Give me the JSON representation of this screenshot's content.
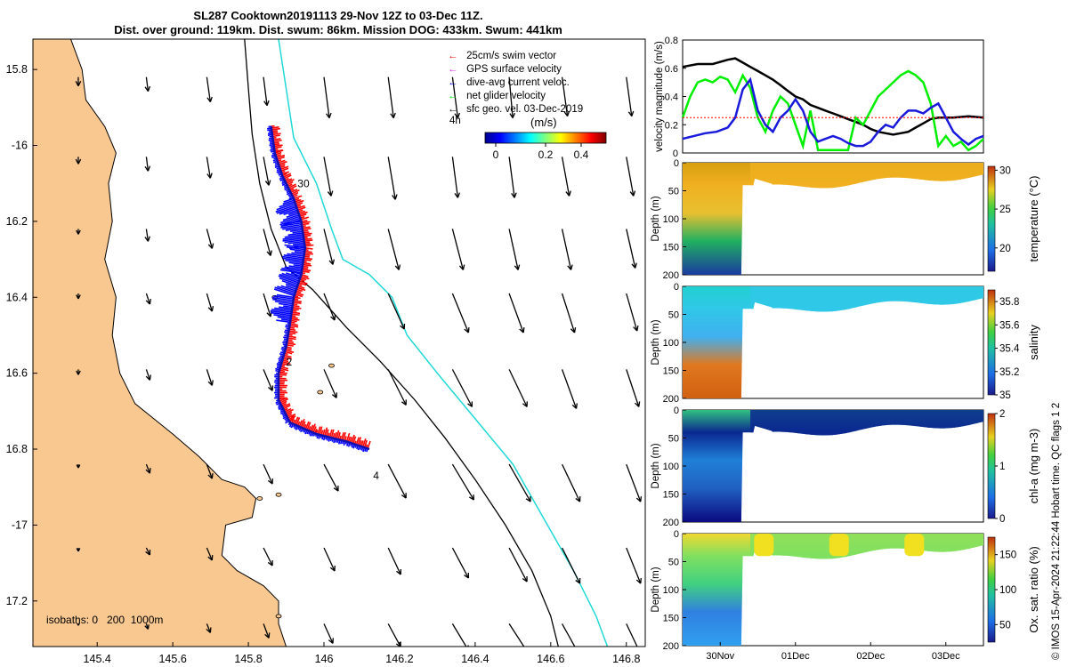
{
  "title": {
    "line1": "SL287 Cooktown20191113 29-Nov 12Z to 03-Dec 11Z.",
    "line2": "Dist. over ground: 119km. Dist. swum: 86km. Mission DOG: 433km. Swum: 441km"
  },
  "copyright": "© IMOS 15-Apr-2024 21:22:44 Hobart time. QC flags 1  2",
  "colors": {
    "land": "#f9c890",
    "track_red": "#ff0000",
    "track_blue": "#0000ff",
    "isobath_200": "#000000",
    "isobath_1000": "#20d8d8",
    "net_velocity": "#00ee00",
    "current": "#0000ff",
    "geo_velocity": "#000000",
    "swim": "#ff0000"
  },
  "map": {
    "legend": [
      "25cm/s swim vector",
      "GPS surface velocity",
      "dive-avg current veloc.",
      "net glider velocity",
      "sfc geo. vel. 03-Dec-2019"
    ],
    "legend_note": "4h",
    "colorbar_label": "(m/s)",
    "colorbar_ticks": [
      "0",
      "0.2",
      "0.4"
    ],
    "isobath_note": "isobaths: 0   200  1000m",
    "track_labels": [
      "30",
      "2",
      "4"
    ]
  },
  "chart_data": [
    {
      "type": "map",
      "x_ticks": [
        145.4,
        145.6,
        145.8,
        146,
        146.2,
        146.4,
        146.6,
        146.8
      ],
      "y_ticks": [
        -15.8,
        -16,
        -16.2,
        -16.4,
        -16.6,
        -16.8,
        -17,
        -17.2
      ],
      "y_tick_labels": [
        "15.8",
        "-16",
        "16.2",
        "16.4",
        "16.6",
        "16.8",
        "-17",
        "17.2"
      ],
      "xlim": [
        145.23,
        146.85
      ],
      "ylim": [
        -17.32,
        -15.72
      ],
      "track_labels": [
        {
          "text": "30",
          "lon": 145.93,
          "lat": -16.11
        },
        {
          "text": "2",
          "lon": 145.9,
          "lat": -16.58
        },
        {
          "text": "4",
          "lon": 146.13,
          "lat": -16.88
        }
      ],
      "glider_track": [
        [
          145.86,
          -15.95
        ],
        [
          145.87,
          -16.02
        ],
        [
          145.89,
          -16.08
        ],
        [
          145.92,
          -16.14
        ],
        [
          145.94,
          -16.2
        ],
        [
          145.95,
          -16.27
        ],
        [
          145.94,
          -16.34
        ],
        [
          145.92,
          -16.4
        ],
        [
          145.91,
          -16.47
        ],
        [
          145.9,
          -16.53
        ],
        [
          145.88,
          -16.6
        ],
        [
          145.88,
          -16.67
        ],
        [
          145.91,
          -16.73
        ],
        [
          145.98,
          -16.76
        ],
        [
          146.06,
          -16.78
        ],
        [
          146.12,
          -16.8
        ]
      ],
      "isobath_200": [
        [
          145.79,
          -15.72
        ],
        [
          145.8,
          -15.85
        ],
        [
          145.81,
          -15.97
        ],
        [
          145.83,
          -16.1
        ],
        [
          145.86,
          -16.22
        ],
        [
          145.9,
          -16.32
        ],
        [
          145.97,
          -16.38
        ],
        [
          146.06,
          -16.48
        ],
        [
          146.15,
          -16.57
        ],
        [
          146.24,
          -16.67
        ],
        [
          146.32,
          -16.77
        ],
        [
          146.4,
          -16.88
        ],
        [
          146.48,
          -17.0
        ],
        [
          146.55,
          -17.12
        ],
        [
          146.6,
          -17.24
        ],
        [
          146.62,
          -17.32
        ]
      ],
      "isobath_1000": [
        [
          145.88,
          -15.72
        ],
        [
          145.9,
          -15.85
        ],
        [
          145.92,
          -15.98
        ],
        [
          145.98,
          -16.1
        ],
        [
          146.02,
          -16.22
        ],
        [
          146.05,
          -16.3
        ],
        [
          146.12,
          -16.34
        ],
        [
          146.18,
          -16.4
        ],
        [
          146.22,
          -16.5
        ],
        [
          146.3,
          -16.6
        ],
        [
          146.4,
          -16.72
        ],
        [
          146.5,
          -16.84
        ],
        [
          146.58,
          -16.98
        ],
        [
          146.66,
          -17.12
        ],
        [
          146.72,
          -17.24
        ],
        [
          146.75,
          -17.32
        ]
      ],
      "geo_vectors": {
        "lons": [
          145.35,
          145.53,
          145.69,
          145.84,
          146.0,
          146.17,
          146.34,
          146.49,
          146.63,
          146.8
        ],
        "lats": [
          -15.82,
          -16.03,
          -16.22,
          -16.39,
          -16.59,
          -16.84,
          -17.06,
          -17.26
        ],
        "u": [
          [
            0.0,
            0.01,
            0.02,
            0.02,
            0.03,
            0.03,
            0.03,
            0.02,
            0.03,
            0.03
          ],
          [
            0.0,
            0.01,
            0.02,
            0.03,
            0.04,
            0.04,
            0.03,
            0.03,
            0.04,
            0.04
          ],
          [
            0.0,
            0.01,
            0.03,
            0.04,
            0.05,
            0.06,
            0.06,
            0.05,
            0.05,
            0.05
          ],
          [
            0.0,
            0.02,
            0.03,
            0.04,
            0.06,
            0.09,
            0.09,
            0.08,
            0.07,
            0.06
          ],
          [
            0.0,
            0.02,
            0.03,
            0.05,
            0.07,
            0.1,
            0.11,
            0.1,
            0.08,
            0.07
          ],
          [
            0.0,
            0.02,
            0.03,
            0.05,
            0.08,
            0.1,
            0.12,
            0.12,
            0.1,
            0.08
          ],
          [
            0.0,
            0.02,
            0.03,
            0.05,
            0.06,
            0.07,
            0.09,
            0.1,
            0.1,
            0.08
          ],
          [
            0.0,
            0.01,
            0.02,
            0.03,
            0.05,
            0.07,
            0.09,
            0.11,
            0.1,
            0.09
          ]
        ],
        "v": [
          [
            -0.05,
            -0.08,
            -0.14,
            -0.16,
            -0.23,
            -0.23,
            -0.23,
            -0.23,
            -0.22,
            -0.22
          ],
          [
            -0.04,
            -0.08,
            -0.12,
            -0.16,
            -0.22,
            -0.24,
            -0.23,
            -0.23,
            -0.22,
            -0.22
          ],
          [
            -0.03,
            -0.07,
            -0.11,
            -0.15,
            -0.2,
            -0.23,
            -0.23,
            -0.23,
            -0.23,
            -0.22
          ],
          [
            -0.03,
            -0.06,
            -0.1,
            -0.13,
            -0.15,
            -0.2,
            -0.22,
            -0.22,
            -0.22,
            -0.21
          ],
          [
            -0.03,
            -0.06,
            -0.09,
            -0.12,
            -0.16,
            -0.2,
            -0.21,
            -0.21,
            -0.22,
            -0.21
          ],
          [
            -0.02,
            -0.05,
            -0.08,
            -0.11,
            -0.15,
            -0.19,
            -0.2,
            -0.21,
            -0.21,
            -0.21
          ],
          [
            -0.02,
            -0.04,
            -0.07,
            -0.1,
            -0.13,
            -0.15,
            -0.17,
            -0.19,
            -0.2,
            -0.2
          ],
          [
            -0.01,
            -0.03,
            -0.05,
            -0.08,
            -0.11,
            -0.13,
            -0.15,
            -0.17,
            -0.18,
            -0.19
          ]
        ]
      }
    },
    {
      "type": "line",
      "ylabel": "velocity magnitude (m/s)",
      "ylim": [
        0,
        0.8
      ],
      "y_ticks": [
        0,
        0.2,
        0.4,
        0.6,
        0.8
      ],
      "xlim": [
        0,
        4
      ],
      "series": [
        {
          "color": "#000000",
          "x": [
            0,
            0.2,
            0.4,
            0.6,
            0.7,
            0.8,
            0.9,
            1.0,
            1.1,
            1.2,
            1.3,
            1.4,
            1.5,
            1.6,
            1.7,
            1.8,
            1.9,
            2.0,
            2.1,
            2.2,
            2.3,
            2.4,
            2.5,
            2.6,
            2.7,
            2.8,
            2.9,
            3.0,
            3.1,
            3.2,
            3.3,
            3.4,
            3.6,
            3.8,
            4.0
          ],
          "values": [
            0.61,
            0.63,
            0.63,
            0.66,
            0.67,
            0.64,
            0.61,
            0.58,
            0.55,
            0.52,
            0.48,
            0.44,
            0.4,
            0.38,
            0.34,
            0.32,
            0.3,
            0.28,
            0.26,
            0.24,
            0.22,
            0.2,
            0.17,
            0.15,
            0.14,
            0.13,
            0.14,
            0.15,
            0.18,
            0.21,
            0.24,
            0.25,
            0.25,
            0.26,
            0.25
          ]
        },
        {
          "color": "#00ee00",
          "x": [
            0,
            0.1,
            0.2,
            0.3,
            0.4,
            0.5,
            0.6,
            0.7,
            0.8,
            0.9,
            1.0,
            1.1,
            1.2,
            1.3,
            1.4,
            1.5,
            1.6,
            1.7,
            1.8,
            1.9,
            2.0,
            2.1,
            2.2,
            2.3,
            2.4,
            2.5,
            2.6,
            2.7,
            2.8,
            2.9,
            3.0,
            3.1,
            3.2,
            3.3,
            3.4,
            3.5,
            3.6,
            3.7,
            3.8,
            3.9,
            4.0
          ],
          "values": [
            0.25,
            0.4,
            0.5,
            0.52,
            0.5,
            0.54,
            0.52,
            0.43,
            0.55,
            0.46,
            0.25,
            0.15,
            0.3,
            0.4,
            0.35,
            0.2,
            0.05,
            0.3,
            0.02,
            0.02,
            0.02,
            0.02,
            0.02,
            0.25,
            0.2,
            0.3,
            0.4,
            0.45,
            0.5,
            0.55,
            0.58,
            0.55,
            0.5,
            0.35,
            0.05,
            0.12,
            0.05,
            0.08,
            0.02,
            0.05,
            0.1
          ]
        },
        {
          "color": "#1a1adc",
          "x": [
            0,
            0.15,
            0.3,
            0.45,
            0.6,
            0.7,
            0.8,
            0.9,
            1.0,
            1.1,
            1.2,
            1.3,
            1.4,
            1.5,
            1.6,
            1.7,
            1.8,
            1.9,
            2.0,
            2.1,
            2.2,
            2.3,
            2.4,
            2.5,
            2.6,
            2.7,
            2.8,
            2.9,
            3.0,
            3.1,
            3.2,
            3.3,
            3.4,
            3.5,
            3.6,
            3.7,
            3.8,
            3.9,
            4.0
          ],
          "values": [
            0.1,
            0.12,
            0.14,
            0.15,
            0.18,
            0.25,
            0.45,
            0.52,
            0.3,
            0.2,
            0.15,
            0.25,
            0.3,
            0.38,
            0.3,
            0.15,
            0.08,
            0.1,
            0.12,
            0.1,
            0.07,
            0.05,
            0.05,
            0.08,
            0.15,
            0.2,
            0.18,
            0.25,
            0.3,
            0.3,
            0.28,
            0.32,
            0.35,
            0.25,
            0.15,
            0.1,
            0.06,
            0.1,
            0.12
          ]
        },
        {
          "color": "#ff0000",
          "x": [
            0,
            4
          ],
          "values": [
            0.25,
            0.25
          ]
        }
      ]
    },
    {
      "type": "heatmap",
      "ylabel": "Depth (m)",
      "clabel": "temperature (°C)",
      "clim": [
        17,
        30.5
      ],
      "cticks": [
        20,
        25,
        30
      ],
      "y_ticks": [
        0,
        50,
        100,
        150,
        200
      ],
      "ylim": [
        0,
        200
      ],
      "field": "temperature"
    },
    {
      "type": "heatmap",
      "ylabel": "Depth (m)",
      "clabel": "salinity",
      "clim": [
        35,
        35.9
      ],
      "cticks": [
        35,
        35.2,
        35.4,
        35.6,
        35.8
      ],
      "y_ticks": [
        0,
        50,
        100,
        150,
        200
      ],
      "ylim": [
        0,
        200
      ],
      "field": "salinity"
    },
    {
      "type": "heatmap",
      "ylabel": "Depth (m)",
      "clabel": "chl-a (mg m-3)",
      "clim": [
        0,
        2
      ],
      "cticks": [
        0,
        1,
        2
      ],
      "y_ticks": [
        0,
        50,
        100,
        150,
        200
      ],
      "ylim": [
        0,
        200
      ],
      "field": "chla"
    },
    {
      "type": "heatmap",
      "ylabel": "Depth (m)",
      "clabel": "Ox. sat. ratio (%)",
      "clim": [
        25,
        175
      ],
      "cticks": [
        50,
        100,
        150
      ],
      "y_ticks": [
        0,
        50,
        100,
        150,
        200
      ],
      "ylim": [
        0,
        200
      ],
      "field": "oxygen",
      "x_tick_labels": [
        "30Nov",
        "01Dec",
        "02Dec",
        "03Dec"
      ],
      "x_tick_positions": [
        0.5,
        1.5,
        2.5,
        3.5
      ]
    }
  ]
}
